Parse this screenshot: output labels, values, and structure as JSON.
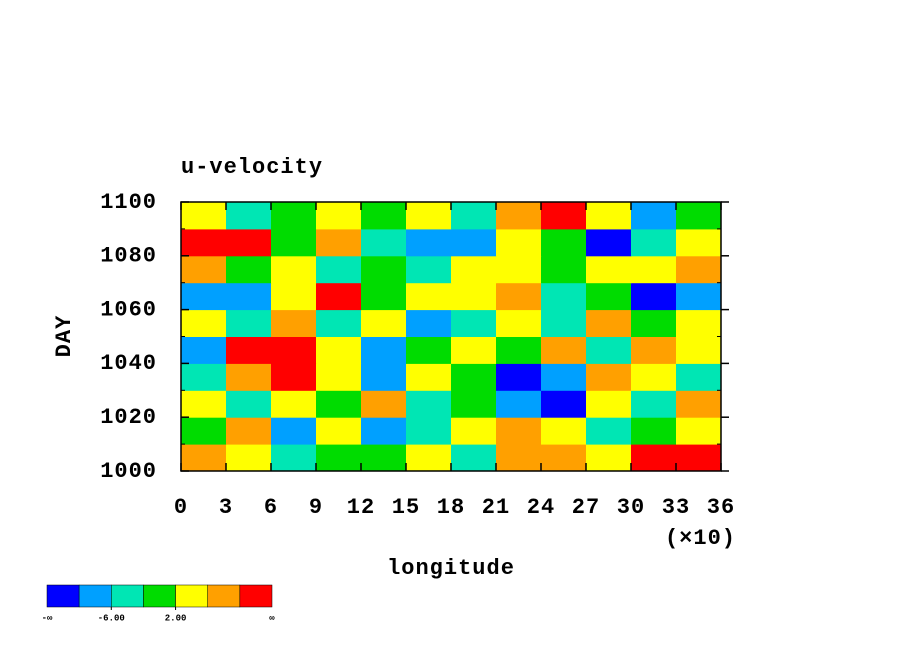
{
  "chart_data": {
    "type": "heatmap",
    "title": "u-velocity",
    "x_label": "longitude",
    "y_label": "DAY",
    "x_multiplier": "(×10)",
    "xlim": [
      0,
      360
    ],
    "ylim": [
      1000,
      1100
    ],
    "xticks": [
      0,
      {
        "value": 30,
        "label": "3"
      },
      {
        "value": 60,
        "label": "6"
      },
      {
        "value": 90,
        "label": "9"
      },
      {
        "value": 120,
        "label": "12"
      },
      {
        "value": 150,
        "label": "15"
      },
      {
        "value": 180,
        "label": "18"
      },
      {
        "value": 210,
        "label": "21"
      },
      {
        "value": 240,
        "label": "24"
      },
      {
        "value": 270,
        "label": "27"
      },
      {
        "value": 300,
        "label": "30"
      },
      {
        "value": 330,
        "label": "33"
      },
      {
        "value": 360,
        "label": "36"
      }
    ],
    "yticks": [
      1000,
      1020,
      1040,
      1060,
      "1080",
      1100
    ],
    "z": [
      [
        8,
        2,
        -4,
        0,
        -2,
        4,
        -6,
        6,
        8,
        2,
        10,
        12
      ],
      [
        -2,
        6,
        -8,
        2,
        -10,
        -4,
        2,
        8,
        4,
        -6,
        -2,
        4
      ],
      [
        4,
        -6,
        2,
        -2,
        6,
        -4,
        0,
        -8,
        -12,
        2,
        -4,
        6
      ],
      [
        -4,
        8,
        10,
        2,
        -8,
        4,
        -2,
        -12,
        -10,
        6,
        2,
        -6
      ],
      [
        -8,
        12,
        12,
        2,
        -10,
        -2,
        4,
        -2,
        6,
        -4,
        8,
        2
      ],
      [
        4,
        -6,
        8,
        -4,
        2,
        -10,
        -6,
        2,
        -4,
        6,
        -2,
        4
      ],
      [
        -10,
        -8,
        2,
        12,
        -2,
        4,
        2,
        6,
        -4,
        -2,
        -12,
        -10
      ],
      [
        6,
        -2,
        4,
        -4,
        0,
        -6,
        2,
        4,
        -2,
        4,
        2,
        6
      ],
      [
        12,
        10,
        -2,
        8,
        -4,
        -10,
        -8,
        2,
        -2,
        -12,
        -6,
        2
      ],
      [
        2,
        -4,
        0,
        2,
        -2,
        4,
        -6,
        6,
        12,
        4,
        -8,
        -2
      ]
    ],
    "colorbar": {
      "colors": [
        "#0000ff",
        "#00a0ff",
        "#00e6b4",
        "#00dc00",
        "#ffff00",
        "#ffa000",
        "#ff0000"
      ],
      "levels": [
        -10,
        -6,
        -2,
        2,
        6,
        10
      ],
      "min_label": "-∞",
      "max_label": "∞",
      "ticks": [
        {
          "value": -6,
          "label": "-6.00"
        },
        {
          "value": 2,
          "label": "2.00"
        }
      ]
    }
  }
}
